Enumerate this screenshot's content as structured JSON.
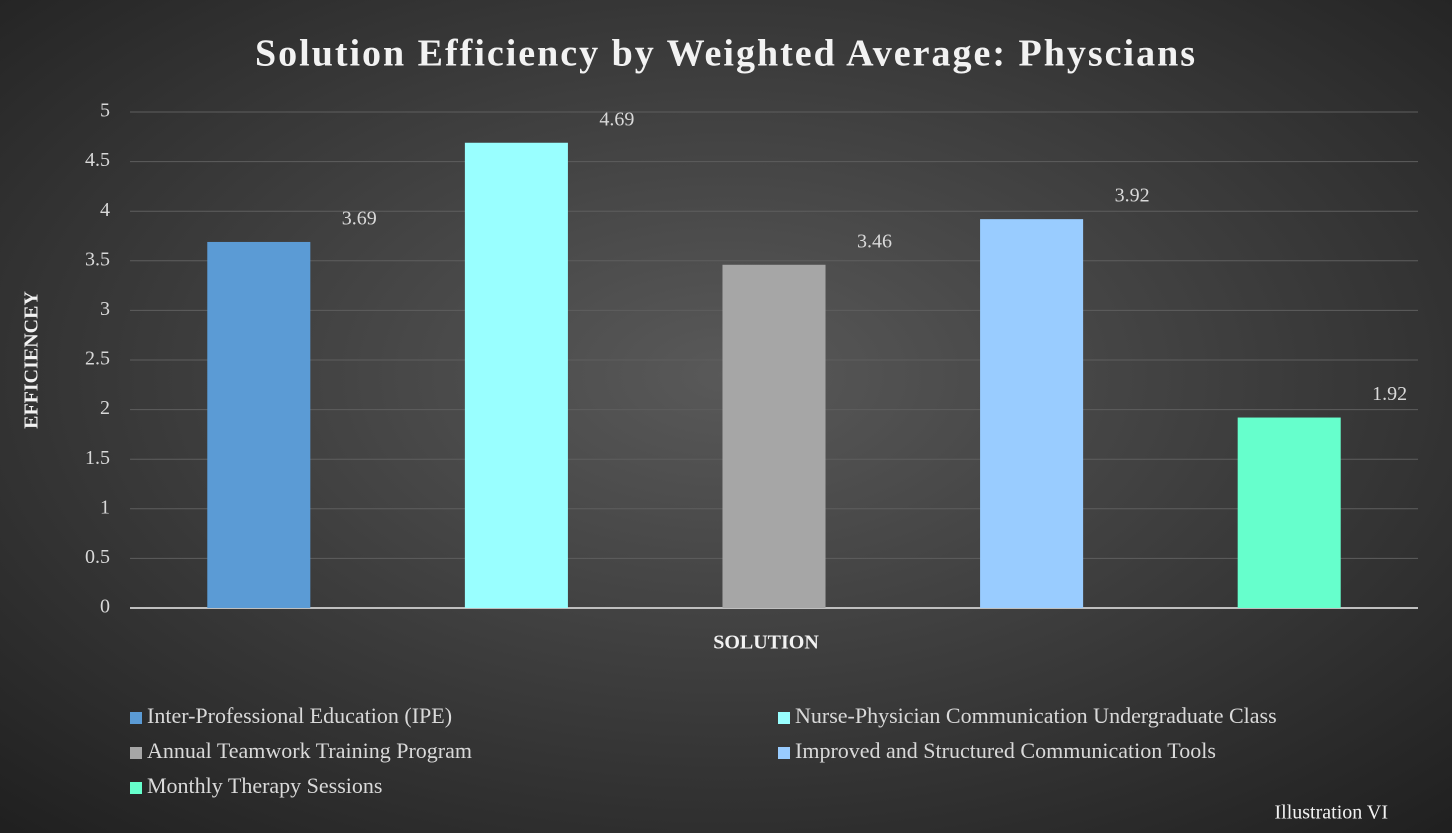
{
  "chart_data": {
    "type": "bar",
    "title": "Solution Efficiency by Weighted Average: Physcians",
    "x_label": "SOLUTION",
    "y_label": "EFFICIENCEY",
    "annotation": "Illustration VI",
    "categories": [
      null
    ],
    "series": [
      {
        "name": "Inter-Professional Education (IPE)",
        "color": "#5b9bd5",
        "values": [
          3.69
        ]
      },
      {
        "name": "Nurse-Physician Communication Undergraduate Class",
        "color": "#99ffff",
        "values": [
          4.69
        ]
      },
      {
        "name": "Annual Teamwork Training Program",
        "color": "#a6a6a6",
        "values": [
          3.46
        ]
      },
      {
        "name": "Improved and Structured Communication Tools",
        "color": "#99ccff",
        "values": [
          3.92
        ]
      },
      {
        "name": "Monthly Therapy Sessions",
        "color": "#66ffcc",
        "values": [
          1.92
        ]
      }
    ],
    "ylim": [
      0,
      5
    ],
    "yticks": [
      0,
      0.5,
      1,
      1.5,
      2,
      2.5,
      3,
      3.5,
      4,
      4.5,
      5
    ],
    "grid": true,
    "legend": "bottom"
  }
}
